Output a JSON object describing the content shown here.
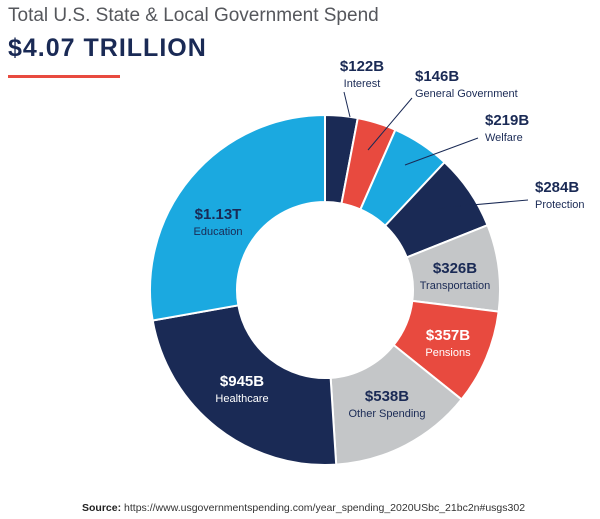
{
  "header": {
    "title": "Total U.S. State & Local Government Spend",
    "total": "$4.07 TRILLION"
  },
  "footer": {
    "source_label": "Source:",
    "source_url": "https://www.usgovernmentspending.com/year_spending_2020USbc_21bc2n#usgs302"
  },
  "chart_data": {
    "type": "pie",
    "donut": true,
    "unit": "billions USD",
    "slices": [
      {
        "label": "Interest",
        "value": 122,
        "display": "$122B",
        "color": "#1a2a55"
      },
      {
        "label": "General Government",
        "value": 146,
        "display": "$146B",
        "color": "#e84a3f"
      },
      {
        "label": "Welfare",
        "value": 219,
        "display": "$219B",
        "color": "#1ba9e0"
      },
      {
        "label": "Protection",
        "value": 284,
        "display": "$284B",
        "color": "#1a2a55"
      },
      {
        "label": "Transportation",
        "value": 326,
        "display": "$326B",
        "color": "#c4c6c8"
      },
      {
        "label": "Pensions",
        "value": 357,
        "display": "$357B",
        "color": "#e84a3f"
      },
      {
        "label": "Other Spending",
        "value": 538,
        "display": "$538B",
        "color": "#c4c6c8"
      },
      {
        "label": "Healthcare",
        "value": 945,
        "display": "$945B",
        "color": "#1a2a55"
      },
      {
        "label": "Education",
        "value": 1130,
        "display": "$1.13T",
        "color": "#1ba9e0"
      }
    ]
  }
}
